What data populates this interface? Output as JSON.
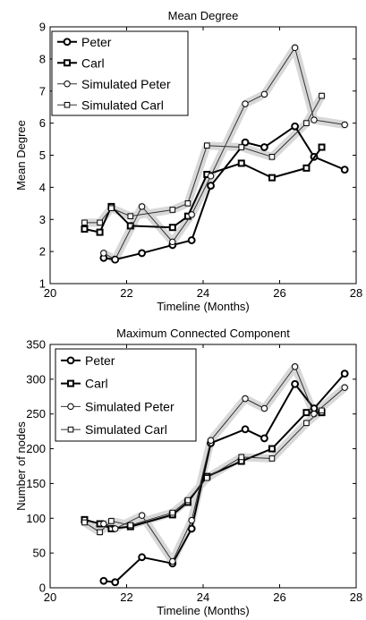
{
  "chart_data": [
    {
      "type": "line",
      "title": "Mean Degree",
      "xlabel": "Timeline (Months)",
      "ylabel": "Mean Degree",
      "xlim": [
        20,
        28
      ],
      "ylim": [
        1,
        9
      ],
      "xticks": [
        20,
        22,
        24,
        26,
        28
      ],
      "yticks": [
        1,
        2,
        3,
        4,
        5,
        6,
        7,
        8,
        9
      ],
      "grid": false,
      "legend_position": "top-left",
      "series": [
        {
          "name": "Peter",
          "marker": "circle-thick",
          "x": [
            21.4,
            21.7,
            22.4,
            23.2,
            23.7,
            24.2,
            25.1,
            25.6,
            26.4,
            26.9,
            27.7
          ],
          "y": [
            1.8,
            1.75,
            1.95,
            2.2,
            2.35,
            4.05,
            5.4,
            5.25,
            5.9,
            4.95,
            4.55
          ]
        },
        {
          "name": "Carl",
          "marker": "square-thick",
          "x": [
            20.9,
            21.3,
            21.6,
            22.1,
            23.2,
            23.6,
            24.1,
            25.0,
            25.8,
            26.7,
            27.1
          ],
          "y": [
            2.7,
            2.6,
            3.4,
            2.8,
            2.75,
            3.1,
            4.4,
            4.75,
            4.3,
            4.6,
            5.25
          ]
        },
        {
          "name": "Simulated Peter",
          "marker": "circle-thin",
          "x": [
            21.4,
            21.7,
            22.4,
            23.2,
            23.7,
            24.2,
            25.1,
            25.6,
            26.4,
            26.9,
            27.7
          ],
          "y": [
            1.95,
            1.75,
            3.4,
            2.3,
            3.15,
            4.35,
            6.6,
            6.9,
            8.35,
            6.1,
            5.95
          ]
        },
        {
          "name": "Simulated Carl",
          "marker": "square-thin",
          "x": [
            20.9,
            21.3,
            21.6,
            22.1,
            23.2,
            23.6,
            24.1,
            25.0,
            25.8,
            26.7,
            27.1
          ],
          "y": [
            2.9,
            2.9,
            3.35,
            3.1,
            3.3,
            3.5,
            5.3,
            5.25,
            4.95,
            6.0,
            6.85
          ]
        }
      ]
    },
    {
      "type": "line",
      "title": "Maximum Connected Component",
      "xlabel": "Timeline (Months)",
      "ylabel": "Number of nodes",
      "xlim": [
        20,
        28
      ],
      "ylim": [
        0,
        350
      ],
      "xticks": [
        20,
        22,
        24,
        26,
        28
      ],
      "yticks": [
        0,
        50,
        100,
        150,
        200,
        250,
        300,
        350
      ],
      "grid": false,
      "legend_position": "top-left",
      "series": [
        {
          "name": "Peter",
          "marker": "circle-thick",
          "x": [
            21.4,
            21.7,
            22.4,
            23.2,
            23.7,
            24.2,
            25.1,
            25.6,
            26.4,
            26.9,
            27.7
          ],
          "y": [
            10,
            8,
            44,
            35,
            85,
            208,
            228,
            215,
            293,
            258,
            308
          ]
        },
        {
          "name": "Carl",
          "marker": "square-thick",
          "x": [
            20.9,
            21.3,
            21.6,
            22.1,
            23.2,
            23.6,
            24.1,
            25.0,
            25.8,
            26.7,
            27.1
          ],
          "y": [
            98,
            92,
            85,
            88,
            105,
            123,
            160,
            182,
            200,
            252,
            252
          ]
        },
        {
          "name": "Simulated Peter",
          "marker": "circle-thin",
          "x": [
            21.4,
            21.7,
            22.4,
            23.2,
            23.7,
            24.2,
            25.1,
            25.6,
            26.4,
            26.9,
            27.7
          ],
          "y": [
            92,
            85,
            104,
            38,
            97,
            212,
            272,
            258,
            318,
            250,
            288
          ]
        },
        {
          "name": "Simulated Carl",
          "marker": "square-thin",
          "x": [
            20.9,
            21.3,
            21.6,
            22.1,
            23.2,
            23.6,
            24.1,
            25.0,
            25.8,
            26.7,
            27.1
          ],
          "y": [
            94,
            80,
            96,
            90,
            108,
            126,
            158,
            188,
            186,
            237,
            255
          ]
        }
      ]
    }
  ]
}
